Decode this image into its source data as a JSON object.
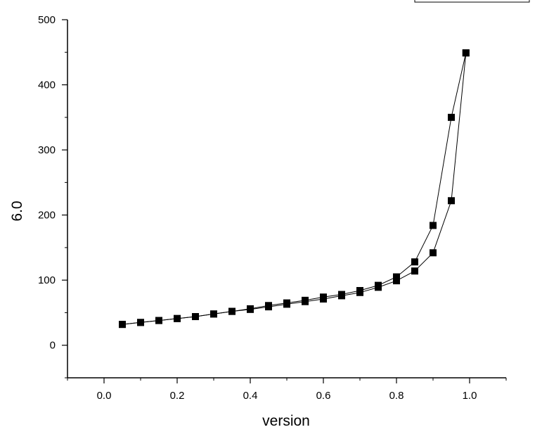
{
  "chart_data": {
    "type": "line",
    "title": "",
    "xlabel": "version",
    "ylabel": "6.0",
    "xlim": [
      -0.1,
      1.1
    ],
    "ylim": [
      -50,
      500
    ],
    "x_ticks": [
      0.0,
      0.2,
      0.4,
      0.6,
      0.8,
      1.0
    ],
    "x_tick_labels": [
      "0.0",
      "0.2",
      "0.4",
      "0.6",
      "0.8",
      "1.0"
    ],
    "y_ticks": [
      0,
      100,
      200,
      300,
      400,
      500
    ],
    "y_tick_labels": [
      "0",
      "100",
      "200",
      "300",
      "400",
      "500"
    ],
    "grid": false,
    "legend": "top-right (clipped)",
    "marker": "square",
    "color": "#000000",
    "series": [
      {
        "x": [
          0.05,
          0.1,
          0.15,
          0.2,
          0.25,
          0.3,
          0.35,
          0.4,
          0.45,
          0.5,
          0.55,
          0.6,
          0.65,
          0.7,
          0.75,
          0.8,
          0.85,
          0.9,
          0.95,
          0.99
        ],
        "values": [
          32,
          35,
          38,
          41,
          44,
          48,
          52,
          56,
          61,
          65,
          69,
          74,
          78,
          84,
          92,
          105,
          128,
          184,
          350,
          449
        ]
      },
      {
        "x": [
          0.05,
          0.1,
          0.15,
          0.2,
          0.25,
          0.3,
          0.35,
          0.4,
          0.45,
          0.5,
          0.55,
          0.6,
          0.65,
          0.7,
          0.75,
          0.8,
          0.85,
          0.9,
          0.95,
          0.99
        ],
        "values": [
          32,
          35,
          38,
          41,
          44,
          48,
          52,
          55,
          59,
          63,
          67,
          71,
          76,
          81,
          89,
          99,
          114,
          142,
          222,
          449
        ]
      }
    ]
  }
}
